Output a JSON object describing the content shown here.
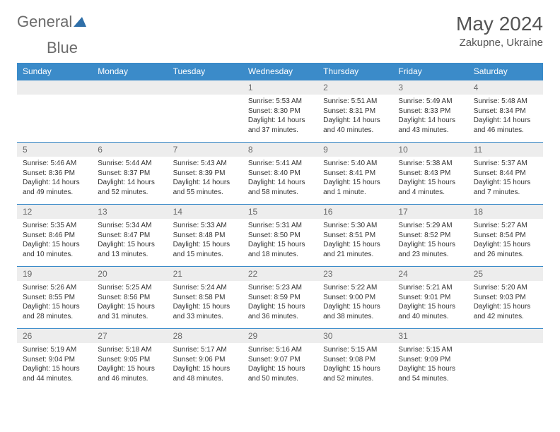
{
  "logo": {
    "text1": "General",
    "text2": "Blue",
    "icon": "triangle-icon"
  },
  "title": "May 2024",
  "location": "Zakupne, Ukraine",
  "colors": {
    "header_bg": "#3b8bc9",
    "daynum_bg": "#ededed",
    "border": "#3b8bc9"
  },
  "weekdays": [
    "Sunday",
    "Monday",
    "Tuesday",
    "Wednesday",
    "Thursday",
    "Friday",
    "Saturday"
  ],
  "weeks": [
    [
      null,
      null,
      null,
      {
        "n": "1",
        "sr": "Sunrise: 5:53 AM",
        "ss": "Sunset: 8:30 PM",
        "dl": "Daylight: 14 hours and 37 minutes."
      },
      {
        "n": "2",
        "sr": "Sunrise: 5:51 AM",
        "ss": "Sunset: 8:31 PM",
        "dl": "Daylight: 14 hours and 40 minutes."
      },
      {
        "n": "3",
        "sr": "Sunrise: 5:49 AM",
        "ss": "Sunset: 8:33 PM",
        "dl": "Daylight: 14 hours and 43 minutes."
      },
      {
        "n": "4",
        "sr": "Sunrise: 5:48 AM",
        "ss": "Sunset: 8:34 PM",
        "dl": "Daylight: 14 hours and 46 minutes."
      }
    ],
    [
      {
        "n": "5",
        "sr": "Sunrise: 5:46 AM",
        "ss": "Sunset: 8:36 PM",
        "dl": "Daylight: 14 hours and 49 minutes."
      },
      {
        "n": "6",
        "sr": "Sunrise: 5:44 AM",
        "ss": "Sunset: 8:37 PM",
        "dl": "Daylight: 14 hours and 52 minutes."
      },
      {
        "n": "7",
        "sr": "Sunrise: 5:43 AM",
        "ss": "Sunset: 8:39 PM",
        "dl": "Daylight: 14 hours and 55 minutes."
      },
      {
        "n": "8",
        "sr": "Sunrise: 5:41 AM",
        "ss": "Sunset: 8:40 PM",
        "dl": "Daylight: 14 hours and 58 minutes."
      },
      {
        "n": "9",
        "sr": "Sunrise: 5:40 AM",
        "ss": "Sunset: 8:41 PM",
        "dl": "Daylight: 15 hours and 1 minute."
      },
      {
        "n": "10",
        "sr": "Sunrise: 5:38 AM",
        "ss": "Sunset: 8:43 PM",
        "dl": "Daylight: 15 hours and 4 minutes."
      },
      {
        "n": "11",
        "sr": "Sunrise: 5:37 AM",
        "ss": "Sunset: 8:44 PM",
        "dl": "Daylight: 15 hours and 7 minutes."
      }
    ],
    [
      {
        "n": "12",
        "sr": "Sunrise: 5:35 AM",
        "ss": "Sunset: 8:46 PM",
        "dl": "Daylight: 15 hours and 10 minutes."
      },
      {
        "n": "13",
        "sr": "Sunrise: 5:34 AM",
        "ss": "Sunset: 8:47 PM",
        "dl": "Daylight: 15 hours and 13 minutes."
      },
      {
        "n": "14",
        "sr": "Sunrise: 5:33 AM",
        "ss": "Sunset: 8:48 PM",
        "dl": "Daylight: 15 hours and 15 minutes."
      },
      {
        "n": "15",
        "sr": "Sunrise: 5:31 AM",
        "ss": "Sunset: 8:50 PM",
        "dl": "Daylight: 15 hours and 18 minutes."
      },
      {
        "n": "16",
        "sr": "Sunrise: 5:30 AM",
        "ss": "Sunset: 8:51 PM",
        "dl": "Daylight: 15 hours and 21 minutes."
      },
      {
        "n": "17",
        "sr": "Sunrise: 5:29 AM",
        "ss": "Sunset: 8:52 PM",
        "dl": "Daylight: 15 hours and 23 minutes."
      },
      {
        "n": "18",
        "sr": "Sunrise: 5:27 AM",
        "ss": "Sunset: 8:54 PM",
        "dl": "Daylight: 15 hours and 26 minutes."
      }
    ],
    [
      {
        "n": "19",
        "sr": "Sunrise: 5:26 AM",
        "ss": "Sunset: 8:55 PM",
        "dl": "Daylight: 15 hours and 28 minutes."
      },
      {
        "n": "20",
        "sr": "Sunrise: 5:25 AM",
        "ss": "Sunset: 8:56 PM",
        "dl": "Daylight: 15 hours and 31 minutes."
      },
      {
        "n": "21",
        "sr": "Sunrise: 5:24 AM",
        "ss": "Sunset: 8:58 PM",
        "dl": "Daylight: 15 hours and 33 minutes."
      },
      {
        "n": "22",
        "sr": "Sunrise: 5:23 AM",
        "ss": "Sunset: 8:59 PM",
        "dl": "Daylight: 15 hours and 36 minutes."
      },
      {
        "n": "23",
        "sr": "Sunrise: 5:22 AM",
        "ss": "Sunset: 9:00 PM",
        "dl": "Daylight: 15 hours and 38 minutes."
      },
      {
        "n": "24",
        "sr": "Sunrise: 5:21 AM",
        "ss": "Sunset: 9:01 PM",
        "dl": "Daylight: 15 hours and 40 minutes."
      },
      {
        "n": "25",
        "sr": "Sunrise: 5:20 AM",
        "ss": "Sunset: 9:03 PM",
        "dl": "Daylight: 15 hours and 42 minutes."
      }
    ],
    [
      {
        "n": "26",
        "sr": "Sunrise: 5:19 AM",
        "ss": "Sunset: 9:04 PM",
        "dl": "Daylight: 15 hours and 44 minutes."
      },
      {
        "n": "27",
        "sr": "Sunrise: 5:18 AM",
        "ss": "Sunset: 9:05 PM",
        "dl": "Daylight: 15 hours and 46 minutes."
      },
      {
        "n": "28",
        "sr": "Sunrise: 5:17 AM",
        "ss": "Sunset: 9:06 PM",
        "dl": "Daylight: 15 hours and 48 minutes."
      },
      {
        "n": "29",
        "sr": "Sunrise: 5:16 AM",
        "ss": "Sunset: 9:07 PM",
        "dl": "Daylight: 15 hours and 50 minutes."
      },
      {
        "n": "30",
        "sr": "Sunrise: 5:15 AM",
        "ss": "Sunset: 9:08 PM",
        "dl": "Daylight: 15 hours and 52 minutes."
      },
      {
        "n": "31",
        "sr": "Sunrise: 5:15 AM",
        "ss": "Sunset: 9:09 PM",
        "dl": "Daylight: 15 hours and 54 minutes."
      },
      null
    ]
  ]
}
